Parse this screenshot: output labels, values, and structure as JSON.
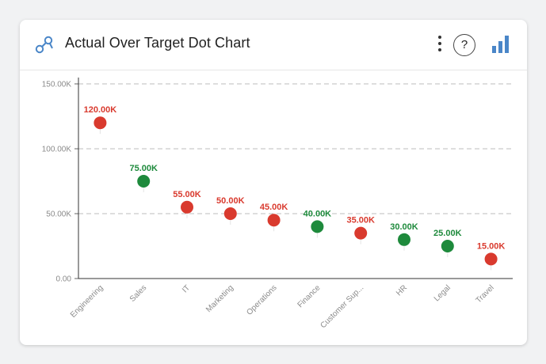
{
  "header": {
    "title": "Actual Over Target Dot Chart",
    "title_icon": "dot-chart-icon",
    "menu_icon": "more-vertical-icon",
    "help_icon": "help-icon",
    "help_text": "?",
    "chart_type_icon": "bar-chart-icon"
  },
  "colors": {
    "above_target": "#1e8a3c",
    "below_target": "#d93a2e",
    "accent": "#4a86c8"
  },
  "chart_data": {
    "type": "scatter",
    "title": "",
    "xlabel": "",
    "ylabel": "",
    "ylim": [
      0,
      150000
    ],
    "yticks": [
      0,
      50000,
      100000,
      150000
    ],
    "ytick_labels": [
      "0.00",
      "50.00K",
      "100.00K",
      "150.00K"
    ],
    "grid": true,
    "categories": [
      "Engineering",
      "Sales",
      "IT",
      "Marketing",
      "Operations",
      "Finance",
      "Customer Sup...",
      "HR",
      "Legal",
      "Travel"
    ],
    "values": [
      120000,
      75000,
      55000,
      50000,
      45000,
      40000,
      35000,
      30000,
      25000,
      15000
    ],
    "labels": [
      "120.00K",
      "75.00K",
      "55.00K",
      "50.00K",
      "45.00K",
      "40.00K",
      "35.00K",
      "30.00K",
      "25.00K",
      "15.00K"
    ],
    "status": [
      "below",
      "above",
      "below",
      "below",
      "below",
      "above",
      "below",
      "above",
      "above",
      "below"
    ]
  }
}
